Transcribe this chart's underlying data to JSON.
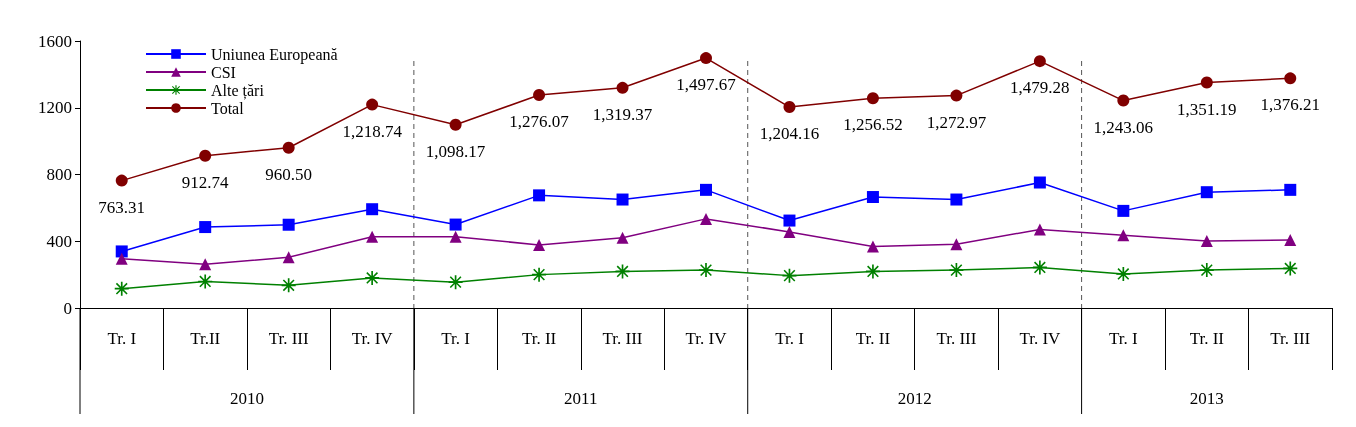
{
  "chart_data": {
    "type": "line",
    "categories": [
      "Tr. I",
      "Tr.II",
      "Tr. III",
      "Tr. IV",
      "Tr. I",
      "Tr. II",
      "Tr. III",
      "Tr. IV",
      "Tr. I",
      "Tr. II",
      "Tr. III",
      "Tr. IV",
      "Tr. I",
      "Tr. II",
      "Tr. III"
    ],
    "annotations": [
      "2010",
      "2011",
      "2012",
      "2013"
    ],
    "series": [
      {
        "name": "Uniunea Europeană",
        "color": "#0000ff",
        "marker": "square",
        "values": [
          339,
          485,
          499,
          592,
          500,
          675,
          650,
          708,
          524,
          665,
          650,
          752,
          582,
          694,
          708
        ]
      },
      {
        "name": "CSI",
        "color": "#800080",
        "marker": "triangle",
        "values": [
          295,
          262,
          304,
          427,
          427,
          378,
          421,
          534,
          456,
          368,
          382,
          471,
          436,
          401,
          407
        ]
      },
      {
        "name": "Alte țări",
        "color": "#008000",
        "marker": "cross",
        "values": [
          116,
          159,
          136,
          180,
          155,
          200,
          219,
          227,
          194,
          219,
          227,
          243,
          204,
          227,
          237
        ]
      },
      {
        "name": "Total",
        "color": "#800000",
        "marker": "circle",
        "values": [
          763.31,
          912.74,
          960.5,
          1218.74,
          1098.17,
          1276.07,
          1319.37,
          1497.67,
          1204.16,
          1256.52,
          1272.97,
          1479.28,
          1243.06,
          1351.19,
          1376.21
        ],
        "value_labels": [
          "763.31",
          "912.74",
          "960.50",
          "1,218.74",
          "1,098.17",
          "1,276.07",
          "1,319.37",
          "1,497.67",
          "1,204.16",
          "1,256.52",
          "1,272.97",
          "1,479.28",
          "1,243.06",
          "1,351.19",
          "1,376.21"
        ]
      }
    ],
    "ylim": [
      0,
      1600
    ],
    "yticks": [
      0,
      400,
      800,
      1200,
      1600
    ],
    "grid": false,
    "legend": "top left"
  }
}
